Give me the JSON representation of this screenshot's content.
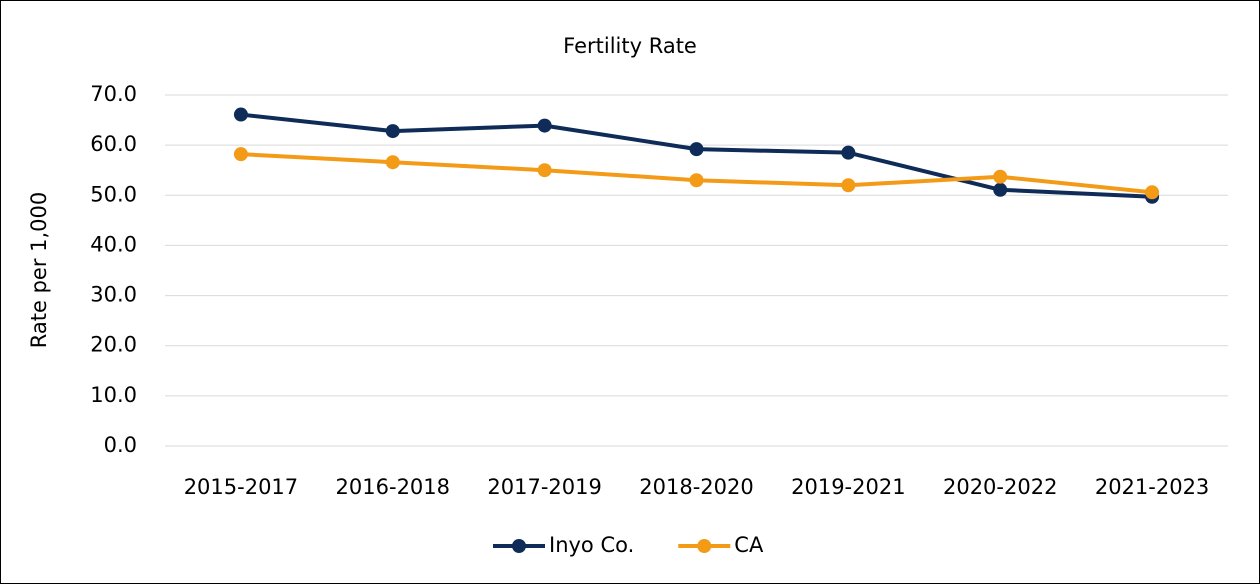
{
  "chart_data": {
    "type": "line",
    "title": "Fertility Rate",
    "y_label": "Rate per 1,000",
    "categories": [
      "2015-2017",
      "2016-2018",
      "2017-2019",
      "2018-2020",
      "2019-2021",
      "2020-2022",
      "2021-2023"
    ],
    "series": [
      {
        "name": "Inyo Co.",
        "color": "#0e2c57",
        "values": [
          66.1,
          62.8,
          63.9,
          59.2,
          58.5,
          51.1,
          49.7
        ]
      },
      {
        "name": "CA",
        "color": "#f39a17",
        "values": [
          58.2,
          56.6,
          55.0,
          53.0,
          52.0,
          53.7,
          50.6
        ]
      }
    ],
    "ylim": [
      0,
      70
    ],
    "yticks": [
      {
        "value": 0,
        "label": "0.0"
      },
      {
        "value": 10,
        "label": "10.0"
      },
      {
        "value": 20,
        "label": "20.0"
      },
      {
        "value": 30,
        "label": "30.0"
      },
      {
        "value": 40,
        "label": "40.0"
      },
      {
        "value": 50,
        "label": "50.0"
      },
      {
        "value": 60,
        "label": "60.0"
      },
      {
        "value": 70,
        "label": "70.0"
      }
    ],
    "grid": true,
    "legend": "bottom"
  }
}
